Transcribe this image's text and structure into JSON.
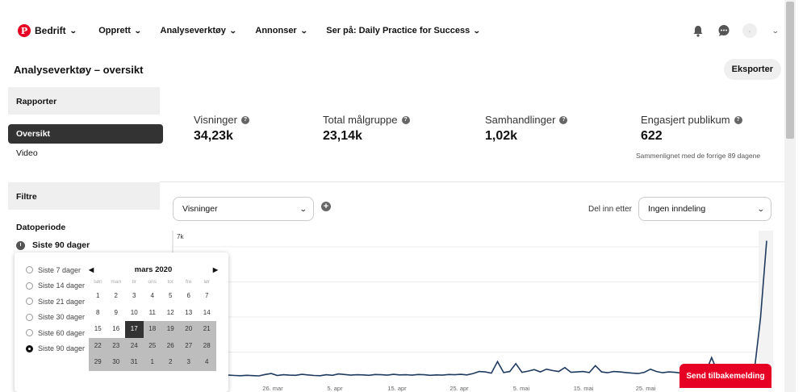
{
  "nav": {
    "brand": "Bedrift",
    "items": [
      {
        "label": "Opprett"
      },
      {
        "label": "Analyseverktøy"
      },
      {
        "label": "Annonser"
      },
      {
        "label": "Ser på: Daily Practice for Success"
      }
    ],
    "icons": [
      "bell-icon",
      "chat-icon",
      "avatar",
      "chevron-down-icon"
    ]
  },
  "header": {
    "title": "Analyseverktøy – oversikt",
    "export_label": "Eksporter"
  },
  "sidebar": {
    "reports_heading": "Rapporter",
    "items": [
      {
        "label": "Oversikt",
        "active": true
      },
      {
        "label": "Video",
        "active": false
      }
    ],
    "filters_heading": "Filtre",
    "date_heading": "Datoperiode",
    "date_value": "Siste 90 dager"
  },
  "date_ranges": [
    {
      "label": "Siste 7 dager",
      "selected": false
    },
    {
      "label": "Siste 14 dager",
      "selected": false
    },
    {
      "label": "Siste 21 dager",
      "selected": false
    },
    {
      "label": "Siste 30 dager",
      "selected": false
    },
    {
      "label": "Siste 60 dager",
      "selected": false
    },
    {
      "label": "Siste 90 dager",
      "selected": true
    }
  ],
  "calendar": {
    "month": "mars 2020",
    "weekdays": [
      "søn",
      "man",
      "tir",
      "ons",
      "tor",
      "fre",
      "lør"
    ],
    "weeks": [
      [
        "1",
        "2",
        "3",
        "4",
        "5",
        "6",
        "7"
      ],
      [
        "8",
        "9",
        "10",
        "11",
        "12",
        "13",
        "14"
      ],
      [
        "15",
        "16",
        "17",
        "18",
        "19",
        "20",
        "21"
      ],
      [
        "22",
        "23",
        "24",
        "25",
        "26",
        "27",
        "28"
      ],
      [
        "29",
        "30",
        "31",
        "1",
        "2",
        "3",
        "4"
      ]
    ],
    "today": "17"
  },
  "metrics": [
    {
      "label": "Visninger",
      "value": "34,23k"
    },
    {
      "label": "Total målgruppe",
      "value": "23,14k"
    },
    {
      "label": "Samhandlinger",
      "value": "1,02k"
    },
    {
      "label": "Engasjert publikum",
      "value": "622"
    }
  ],
  "compare_note": "Sammenlignet med de forrige 89 dagene",
  "metric_select": "Visninger",
  "split_label": "Del inn etter",
  "split_select": "Ingen inndeling",
  "feedback_label": "Send tilbakemelding",
  "chart_data": {
    "type": "line",
    "y_tick_top": "7k",
    "x_ticks": [
      "26. mar",
      "5. apr",
      "15. apr",
      "25. apr",
      "5. mai",
      "15. mai",
      "25. mai"
    ],
    "series": [
      {
        "values": [
          120,
          100,
          90,
          110,
          95,
          80,
          150,
          200,
          100,
          140,
          120,
          110,
          160,
          130,
          100,
          90,
          140,
          110,
          180,
          150,
          120,
          140,
          130,
          110,
          150,
          140,
          120,
          160,
          130,
          140,
          120,
          150,
          140,
          110,
          130,
          120,
          150,
          140,
          160,
          130,
          200,
          300,
          280,
          220,
          800,
          250,
          300,
          700,
          260,
          320,
          400,
          280,
          420,
          350,
          300,
          500,
          260,
          280,
          300,
          250,
          600,
          280,
          240,
          300,
          280,
          250,
          220,
          200,
          260,
          420,
          300,
          240,
          280,
          260,
          220,
          250,
          230,
          200,
          240,
          1000,
          260,
          180,
          200,
          240,
          280,
          300,
          350,
          3000,
          6900
        ]
      }
    ],
    "ylim": [
      0,
      7000
    ],
    "grid": true,
    "colors": {
      "line": "#1f3a5f"
    }
  },
  "colors": {
    "brand": "#e60023",
    "active_nav": "#333333"
  }
}
